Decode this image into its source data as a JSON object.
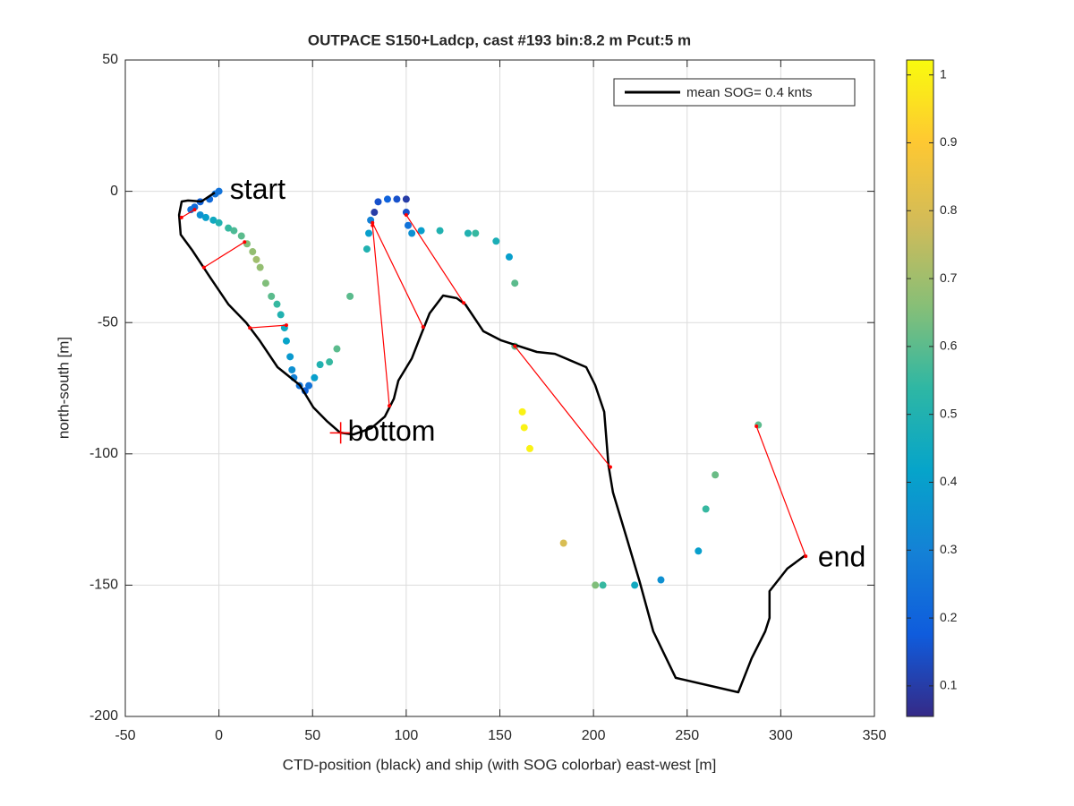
{
  "chart_data": {
    "type": "line",
    "title": "OUTPACE S150+Ladcp, cast #193 bin:8.2 m  Pcut:5 m",
    "xlabel": "CTD-position (black) and ship (with SOG colorbar) east-west [m]",
    "ylabel": "north-south [m]",
    "xlim": [
      -50,
      350
    ],
    "xticks": [
      -50,
      0,
      50,
      100,
      150,
      200,
      250,
      300,
      350
    ],
    "ylim": [
      -200,
      50
    ],
    "yticks": [
      -200,
      -150,
      -100,
      -50,
      0,
      50
    ],
    "grid": true,
    "legend": "top-right",
    "series": [
      {
        "name": "mean SOG=  0.4 knts",
        "color": "#000000",
        "x": [
          -2.2,
          -9.4,
          -16.5,
          -19.9,
          -21.3,
          -20.4,
          -14.1,
          -4.6,
          5,
          14.5,
          21.7,
          31.3,
          43.2,
          50.4,
          57.5,
          64.7,
          71.9,
          81.4,
          88.6,
          93.4,
          95.8,
          103,
          107.7,
          112.5,
          119.7,
          126.9,
          131.6,
          141.2,
          150.7,
          169.8,
          179.4,
          196.1,
          200.9,
          205.7,
          208,
          210.4,
          217.6,
          224.7,
          231.9,
          243.9,
          277.3,
          284.5,
          291.7,
          294,
          294,
          303.5,
          313.1
        ],
        "y": [
          -0.5,
          -3.9,
          -3.5,
          -3.9,
          -9,
          -16.5,
          -22.6,
          -32.9,
          -43,
          -50,
          -56.8,
          -67,
          -73.8,
          -82.3,
          -87.4,
          -91.9,
          -92.6,
          -90.2,
          -85.8,
          -79,
          -72.1,
          -63.6,
          -55,
          -46.5,
          -39.7,
          -40.7,
          -43.1,
          -53.3,
          -56.8,
          -61.2,
          -61.9,
          -67,
          -73.8,
          -84,
          -104.5,
          -114.7,
          -131.8,
          -148.8,
          -167.6,
          -185.3,
          -190.8,
          -177.8,
          -167.6,
          -162.5,
          -152.3,
          -143.7,
          -138.6
        ]
      }
    ],
    "points": {
      "x": [
        0,
        -2,
        -5,
        -10,
        -13,
        -15,
        -10,
        -7,
        -3,
        0,
        5,
        8,
        12,
        15,
        18,
        20,
        22,
        25,
        28,
        31,
        33,
        35,
        36,
        38,
        39,
        40,
        43,
        46,
        48,
        51,
        54,
        59,
        63,
        70,
        79,
        80,
        81,
        83,
        85,
        90,
        95,
        100,
        100,
        101,
        103,
        108,
        118,
        133,
        137,
        148,
        155,
        158,
        158,
        162,
        163,
        166,
        184,
        201,
        205,
        222,
        236,
        256,
        260,
        265,
        288
      ],
      "y": [
        0,
        -1,
        -3,
        -4,
        -6,
        -7,
        -9,
        -10,
        -11,
        -12,
        -14,
        -15,
        -17,
        -20,
        -23,
        -26,
        -29,
        -35,
        -40,
        -43,
        -47,
        -52,
        -57,
        -63,
        -68,
        -71,
        -74,
        -76,
        -74,
        -71,
        -66,
        -65,
        -60,
        -40,
        -22,
        -16,
        -11,
        -8,
        -4,
        -3,
        -3,
        -3,
        -8,
        -13,
        -16,
        -15,
        -15,
        -16,
        -16,
        -19,
        -25,
        -35,
        -59,
        -84,
        -90,
        -98,
        -134,
        -150,
        -150,
        -150,
        -148,
        -137,
        -121,
        -108,
        -89
      ],
      "values": [
        0.25,
        0.25,
        0.22,
        0.2,
        0.22,
        0.25,
        0.35,
        0.4,
        0.45,
        0.5,
        0.55,
        0.58,
        0.6,
        0.65,
        0.68,
        0.7,
        0.68,
        0.65,
        0.6,
        0.55,
        0.5,
        0.45,
        0.42,
        0.38,
        0.35,
        0.3,
        0.25,
        0.2,
        0.25,
        0.4,
        0.5,
        0.55,
        0.6,
        0.6,
        0.5,
        0.4,
        0.3,
        0.1,
        0.15,
        0.2,
        0.15,
        0.1,
        0.15,
        0.25,
        0.35,
        0.4,
        0.5,
        0.5,
        0.55,
        0.48,
        0.4,
        0.6,
        0.6,
        1.0,
        1.0,
        1.0,
        0.8,
        0.65,
        0.55,
        0.45,
        0.35,
        0.4,
        0.55,
        0.62,
        0.6
      ]
    },
    "links_color": "#ff0000",
    "links": [
      {
        "x": [
          -20,
          -13
        ],
        "y": [
          -10,
          -7
        ]
      },
      {
        "x": [
          -8,
          13.7
        ],
        "y": [
          -29,
          -19.3
        ]
      },
      {
        "x": [
          16.5,
          36
        ],
        "y": [
          -52,
          -51
        ]
      },
      {
        "x": [
          91,
          82
        ],
        "y": [
          -81.7,
          -13
        ]
      },
      {
        "x": [
          109,
          82
        ],
        "y": [
          -51.7,
          -12
        ]
      },
      {
        "x": [
          130.7,
          100
        ],
        "y": [
          -42.5,
          -9
        ]
      },
      {
        "x": [
          209,
          158
        ],
        "y": [
          -105,
          -59
        ]
      },
      {
        "x": [
          313.3,
          287
        ],
        "y": [
          -139,
          -89.5
        ]
      }
    ],
    "annotations": [
      {
        "text": "start",
        "x": 2,
        "y": 0
      },
      {
        "text": "bottom",
        "x": 65,
        "y": -92
      },
      {
        "text": "end",
        "x": 316,
        "y": -140
      }
    ],
    "colormap": "parula",
    "clim": [
      0.055,
      1.022
    ],
    "cticks": [
      0.1,
      0.2,
      0.3,
      0.4,
      0.5,
      0.6,
      0.7,
      0.8,
      0.9,
      1
    ]
  }
}
